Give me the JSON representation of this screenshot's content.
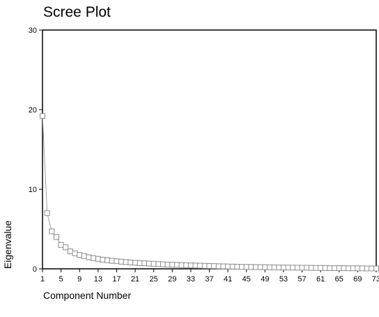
{
  "chart_data": {
    "type": "line",
    "title": "Scree Plot",
    "xlabel": "Component Number",
    "ylabel": "Eigenvalue",
    "xlim": [
      1,
      73
    ],
    "ylim": [
      0,
      30
    ],
    "yticks": [
      0,
      10,
      20,
      30
    ],
    "xticks": [
      1,
      5,
      9,
      13,
      17,
      21,
      25,
      29,
      33,
      37,
      41,
      45,
      49,
      53,
      57,
      61,
      65,
      69,
      73
    ],
    "marker": "hollow-square",
    "grid": false,
    "legend": "none",
    "line_color": "#a0a0a0",
    "x": [
      1,
      2,
      3,
      4,
      5,
      6,
      7,
      8,
      9,
      10,
      11,
      12,
      13,
      14,
      15,
      16,
      17,
      18,
      19,
      20,
      21,
      22,
      23,
      24,
      25,
      26,
      27,
      28,
      29,
      30,
      31,
      32,
      33,
      34,
      35,
      36,
      37,
      38,
      39,
      40,
      41,
      42,
      43,
      44,
      45,
      46,
      47,
      48,
      49,
      50,
      51,
      52,
      53,
      54,
      55,
      56,
      57,
      58,
      59,
      60,
      61,
      62,
      63,
      64,
      65,
      66,
      67,
      68,
      69,
      70,
      71,
      72,
      73
    ],
    "values": [
      19.2,
      7.0,
      4.7,
      4.0,
      3.0,
      2.7,
      2.2,
      1.95,
      1.75,
      1.6,
      1.45,
      1.35,
      1.25,
      1.15,
      1.08,
      1.0,
      0.95,
      0.9,
      0.85,
      0.8,
      0.76,
      0.72,
      0.69,
      0.66,
      0.63,
      0.6,
      0.57,
      0.54,
      0.52,
      0.5,
      0.47,
      0.45,
      0.43,
      0.41,
      0.39,
      0.37,
      0.35,
      0.34,
      0.32,
      0.31,
      0.29,
      0.28,
      0.27,
      0.25,
      0.24,
      0.23,
      0.22,
      0.21,
      0.2,
      0.19,
      0.18,
      0.17,
      0.16,
      0.16,
      0.15,
      0.14,
      0.13,
      0.13,
      0.12,
      0.11,
      0.11,
      0.1,
      0.09,
      0.09,
      0.08,
      0.08,
      0.07,
      0.07,
      0.06,
      0.06,
      0.05,
      0.05,
      0.04
    ]
  }
}
